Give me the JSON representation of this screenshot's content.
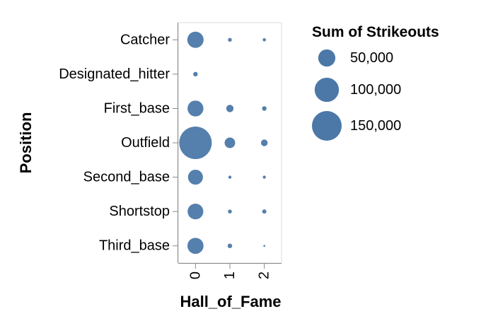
{
  "chart_data": {
    "type": "scatter",
    "mark": "circle",
    "x_field": "Hall_of_Fame",
    "y_field": "Position",
    "size_field": "Sum of Strikeouts",
    "xlabel": "Hall_of_Fame",
    "ylabel": "Position",
    "x_categories": [
      "0",
      "1",
      "2"
    ],
    "y_categories": [
      "Catcher",
      "Designated_hitter",
      "First_base",
      "Outfield",
      "Second_base",
      "Shortstop",
      "Third_base"
    ],
    "points": [
      {
        "Position": "Catcher",
        "Hall_of_Fame": "0",
        "strikeouts": 45000
      },
      {
        "Position": "Catcher",
        "Hall_of_Fame": "1",
        "strikeouts": 2500
      },
      {
        "Position": "Catcher",
        "Hall_of_Fame": "2",
        "strikeouts": 1800
      },
      {
        "Position": "Designated_hitter",
        "Hall_of_Fame": "0",
        "strikeouts": 3500
      },
      {
        "Position": "First_base",
        "Hall_of_Fame": "0",
        "strikeouts": 43000
      },
      {
        "Position": "First_base",
        "Hall_of_Fame": "1",
        "strikeouts": 9000
      },
      {
        "Position": "First_base",
        "Hall_of_Fame": "2",
        "strikeouts": 3500
      },
      {
        "Position": "Outfield",
        "Hall_of_Fame": "0",
        "strikeouts": 180000
      },
      {
        "Position": "Outfield",
        "Hall_of_Fame": "1",
        "strikeouts": 19000
      },
      {
        "Position": "Outfield",
        "Hall_of_Fame": "2",
        "strikeouts": 7500
      },
      {
        "Position": "Second_base",
        "Hall_of_Fame": "0",
        "strikeouts": 38000
      },
      {
        "Position": "Second_base",
        "Hall_of_Fame": "1",
        "strikeouts": 1600
      },
      {
        "Position": "Second_base",
        "Hall_of_Fame": "2",
        "strikeouts": 1600
      },
      {
        "Position": "Shortstop",
        "Hall_of_Fame": "0",
        "strikeouts": 42000
      },
      {
        "Position": "Shortstop",
        "Hall_of_Fame": "1",
        "strikeouts": 2600
      },
      {
        "Position": "Shortstop",
        "Hall_of_Fame": "2",
        "strikeouts": 3000
      },
      {
        "Position": "Third_base",
        "Hall_of_Fame": "0",
        "strikeouts": 44000
      },
      {
        "Position": "Third_base",
        "Hall_of_Fame": "1",
        "strikeouts": 3500
      },
      {
        "Position": "Third_base",
        "Hall_of_Fame": "2",
        "strikeouts": 600
      }
    ],
    "legend": {
      "title": "Sum of Strikeouts",
      "position": "top-right",
      "values": [
        50000,
        100000,
        150000
      ],
      "labels": [
        "50,000",
        "100,000",
        "150,000"
      ]
    },
    "grid": false,
    "colors": {
      "mark": "#4c78a8",
      "axis": "#888888",
      "text": "#000000"
    }
  }
}
